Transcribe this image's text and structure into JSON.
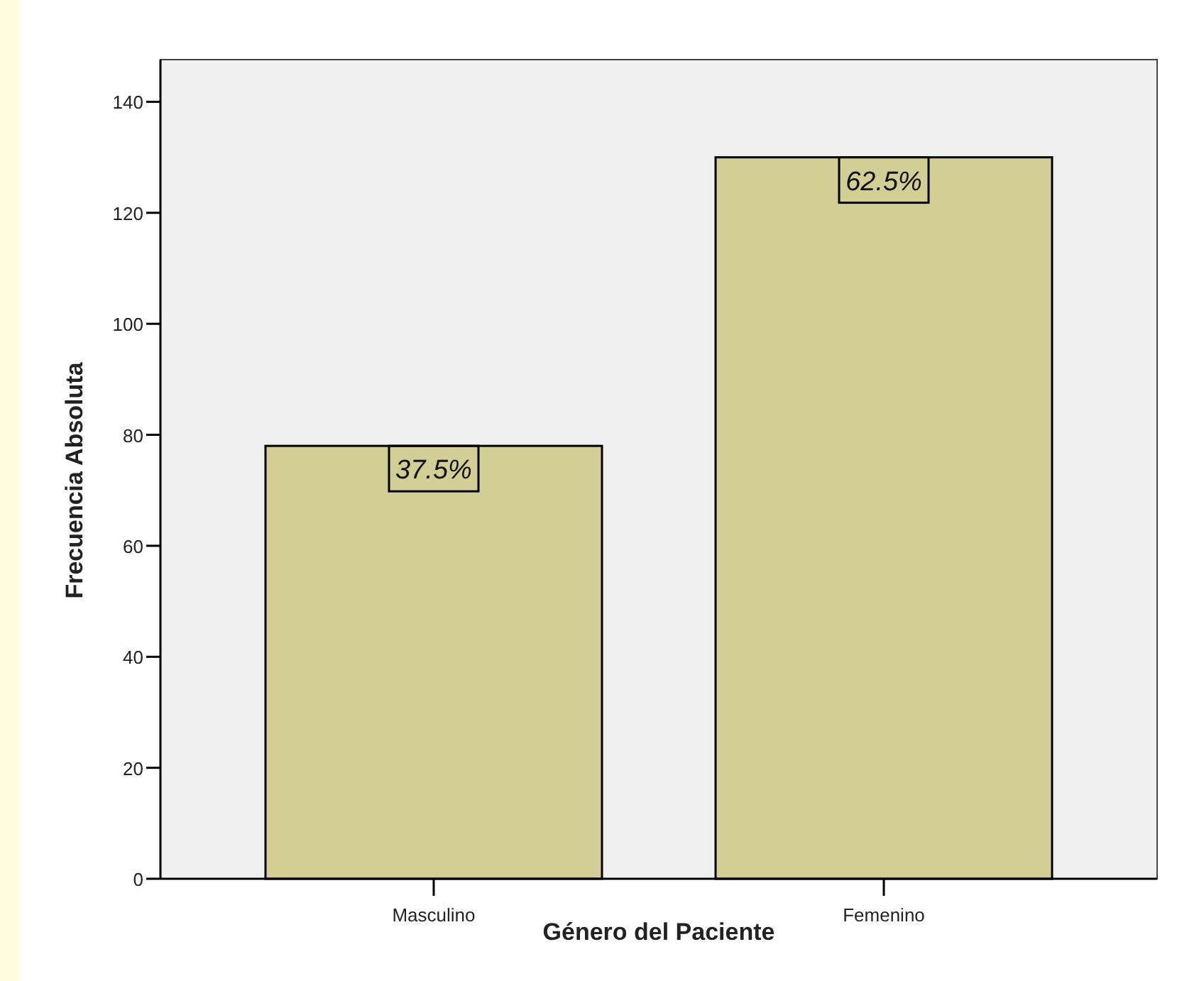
{
  "chart_data": {
    "type": "bar",
    "xlabel": "Género del Paciente",
    "ylabel": "Frecuencia Absoluta",
    "categories": [
      "Masculino",
      "Femenino"
    ],
    "values": [
      78,
      130
    ],
    "annotations": [
      {
        "text": "37.5%",
        "x": "Masculino",
        "y": 78
      },
      {
        "text": "62.5%",
        "x": "Femenino",
        "y": 130
      }
    ],
    "color": "#d3cd96",
    "ylim": [
      0,
      147.6
    ],
    "yticks": [
      0,
      20,
      40,
      60,
      80,
      100,
      120,
      140
    ],
    "grid": false
  }
}
